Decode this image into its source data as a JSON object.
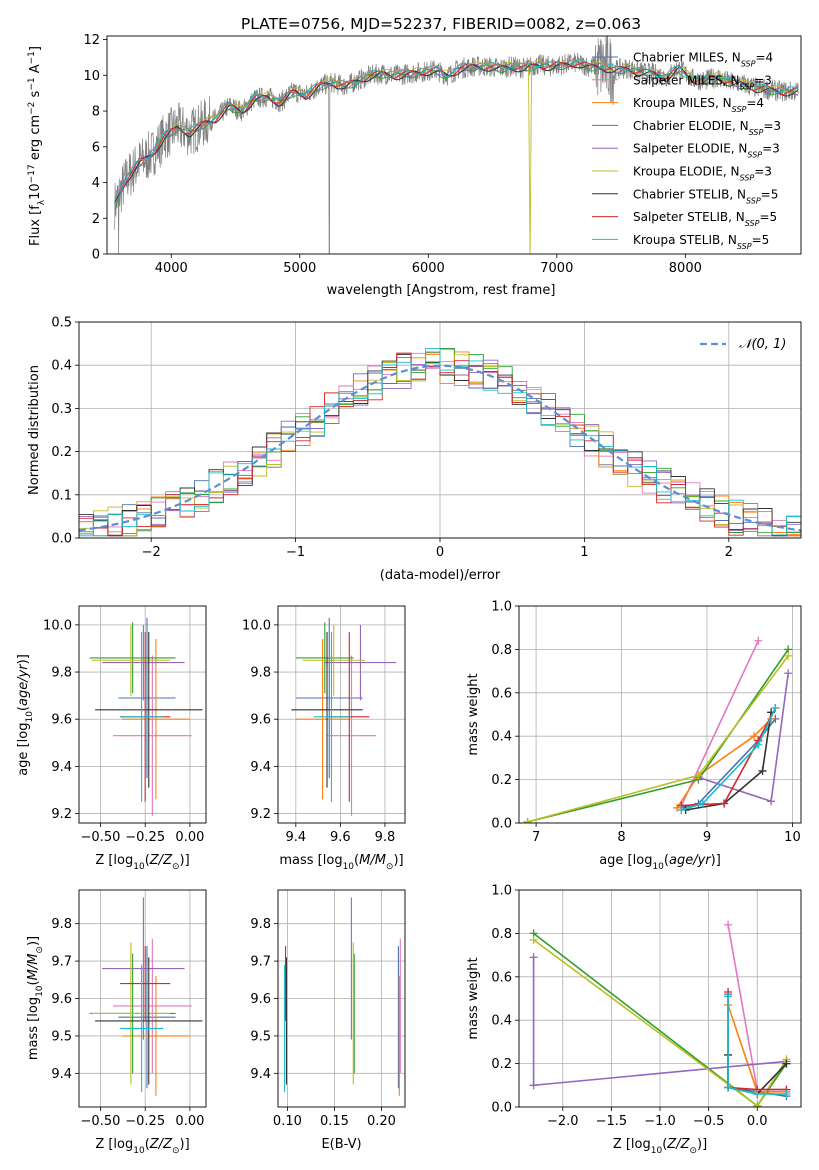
{
  "figure_title": "PLATE=0756, MJD=52237, FIBERID=0082, z=0.063",
  "colors": {
    "chabrier_miles": "#4c72b0",
    "salpeter_miles": "#e377c2",
    "kroupa_miles": "#ff7f0e",
    "chabrier_elodie": "#2ca02c",
    "salpeter_elodie": "#9467bd",
    "kroupa_elodie": "#bcbd22",
    "chabrier_stelib": "#333333",
    "salpeter_stelib": "#d62728",
    "kroupa_stelib": "#17becf",
    "data": "#808080",
    "normal": "#5b8fd6"
  },
  "legend": [
    {
      "name": "Chabrier MILES",
      "nssp": "4"
    },
    {
      "name": "Salpeter MILES",
      "nssp": "3"
    },
    {
      "name": "Kroupa MILES",
      "nssp": "4"
    },
    {
      "name": "Chabrier ELODIE",
      "nssp": "3"
    },
    {
      "name": "Salpeter ELODIE",
      "nssp": "3"
    },
    {
      "name": "Kroupa ELODIE",
      "nssp": "3"
    },
    {
      "name": "Chabrier STELIB",
      "nssp": "5"
    },
    {
      "name": "Salpeter STELIB",
      "nssp": "5"
    },
    {
      "name": "Kroupa STELIB",
      "nssp": "5"
    }
  ],
  "chart_data": [
    {
      "type": "line",
      "id": "spectrum",
      "xlabel": "wavelength [Angstrom, rest frame]",
      "ylabel": "Flux [fλ10⁻¹⁷ erg cm⁻² s⁻¹ A⁻¹]",
      "xlim": [
        3500,
        8900
      ],
      "ylim": [
        0,
        12.2
      ],
      "xticks": [
        4000,
        5000,
        6000,
        7000,
        8000
      ],
      "yticks": [
        0,
        2,
        4,
        6,
        8,
        10,
        12
      ],
      "x": [
        3550,
        3650,
        3750,
        3850,
        3950,
        4050,
        4150,
        4250,
        4350,
        4450,
        4550,
        4650,
        4750,
        4850,
        4950,
        5050,
        5150,
        5250,
        5350,
        5450,
        5550,
        5650,
        5750,
        5850,
        5950,
        6050,
        6150,
        6250,
        6350,
        6450,
        6550,
        6650,
        6750,
        6850,
        6950,
        7050,
        7150,
        7250,
        7350,
        7450,
        7550,
        7650,
        7750,
        7850,
        7950,
        8050,
        8150,
        8250,
        8350,
        8450,
        8550,
        8650,
        8750
      ],
      "y": [
        2.6,
        4.2,
        5.1,
        5.6,
        6.6,
        7.1,
        6.8,
        7.3,
        7.6,
        8.3,
        8.0,
        8.7,
        8.8,
        8.5,
        9.1,
        8.9,
        9.4,
        9.6,
        9.4,
        9.7,
        10.0,
        10.1,
        10.0,
        10.1,
        10.2,
        10.3,
        10.0,
        10.4,
        10.5,
        10.5,
        10.4,
        10.5,
        10.4,
        10.6,
        10.5,
        10.6,
        10.7,
        10.5,
        10.5,
        10.3,
        10.4,
        10.2,
        10.1,
        9.9,
        10.4,
        9.8,
        9.7,
        9.9,
        9.6,
        9.5,
        9.3,
        9.2,
        9.1
      ]
    },
    {
      "type": "line",
      "id": "residual_histogram",
      "xlabel": "(data-model)/error",
      "ylabel": "Normed distribution",
      "xlim": [
        -2.5,
        2.5
      ],
      "ylim": [
        0,
        0.5
      ],
      "xticks": [
        -2,
        -1,
        0,
        1,
        2
      ],
      "xtick_labels": [
        "−2",
        "−1",
        "0",
        "1",
        "2"
      ],
      "yticks": [
        0,
        0.1,
        0.2,
        0.3,
        0.4,
        0.5
      ],
      "ytick_labels": [
        "0.0",
        "0.1",
        "0.2",
        "0.3",
        "0.4",
        "0.5"
      ],
      "reference": {
        "name": "𝒩(0, 1)",
        "mean": 0,
        "sigma": 1
      },
      "bin_width": 0.1
    },
    {
      "type": "scatter",
      "id": "age_vs_Z",
      "xlabel": "Z [log10(Z/Z⊙)]",
      "ylabel": "age [log10(age/yr)]",
      "xlim": [
        -0.62,
        0.09
      ],
      "ylim": [
        9.16,
        10.08
      ],
      "xticks": [
        -0.5,
        -0.25,
        0.0
      ],
      "xtick_labels": [
        "−0.50",
        "−0.25",
        "0.00"
      ],
      "yticks": [
        9.2,
        9.4,
        9.6,
        9.8,
        10.0
      ],
      "ytick_labels": [
        "9.2",
        "9.4",
        "9.6",
        "9.8",
        "10.0"
      ],
      "points": [
        {
          "model": "chabrier_miles",
          "x": -0.24,
          "xerr": 0.16,
          "y": 9.69,
          "yerr": 0.34
        },
        {
          "model": "salpeter_miles",
          "x": -0.21,
          "xerr": 0.22,
          "y": 9.53,
          "yerr": 0.34
        },
        {
          "model": "kroupa_miles",
          "x": -0.19,
          "xerr": 0.19,
          "y": 9.6,
          "yerr": 0.34
        },
        {
          "model": "chabrier_elodie",
          "x": -0.32,
          "xerr": 0.24,
          "y": 9.86,
          "yerr": 0.15
        },
        {
          "model": "salpeter_elodie",
          "x": -0.26,
          "xerr": 0.23,
          "y": 9.84,
          "yerr": 0.16
        },
        {
          "model": "kroupa_elodie",
          "x": -0.33,
          "xerr": 0.22,
          "y": 9.85,
          "yerr": 0.15
        },
        {
          "model": "chabrier_stelib",
          "x": -0.23,
          "xerr": 0.3,
          "y": 9.64,
          "yerr": 0.33
        },
        {
          "model": "salpeter_stelib",
          "x": -0.25,
          "xerr": 0.14,
          "y": 9.61,
          "yerr": 0.36
        },
        {
          "model": "kroupa_stelib",
          "x": -0.27,
          "xerr": 0.12,
          "y": 9.61,
          "yerr": 0.36
        }
      ]
    },
    {
      "type": "scatter",
      "id": "age_vs_mass",
      "xlabel": "mass [log10(M/M⊙)]",
      "ylabel": "",
      "xlim": [
        9.32,
        9.89
      ],
      "ylim": [
        9.16,
        10.08
      ],
      "xticks": [
        9.4,
        9.6,
        9.8
      ],
      "xtick_labels": [
        "9.4",
        "9.6",
        "9.8"
      ],
      "yticks": [
        9.2,
        9.4,
        9.6,
        9.8,
        10.0
      ],
      "ytick_labels": [
        "9.2",
        "9.4",
        "9.6",
        "9.8",
        "10.0"
      ],
      "points": [
        {
          "model": "chabrier_miles",
          "x": 9.55,
          "xerr": 0.15,
          "y": 9.69,
          "yerr": 0.34
        },
        {
          "model": "salpeter_miles",
          "x": 9.65,
          "xerr": 0.11,
          "y": 9.53,
          "yerr": 0.34
        },
        {
          "model": "kroupa_miles",
          "x": 9.52,
          "xerr": 0.12,
          "y": 9.6,
          "yerr": 0.34
        },
        {
          "model": "chabrier_elodie",
          "x": 9.53,
          "xerr": 0.13,
          "y": 9.86,
          "yerr": 0.15
        },
        {
          "model": "salpeter_elodie",
          "x": 9.69,
          "xerr": 0.16,
          "y": 9.84,
          "yerr": 0.16
        },
        {
          "model": "kroupa_elodie",
          "x": 9.57,
          "xerr": 0.14,
          "y": 9.85,
          "yerr": 0.15
        },
        {
          "model": "chabrier_stelib",
          "x": 9.54,
          "xerr": 0.16,
          "y": 9.64,
          "yerr": 0.33
        },
        {
          "model": "salpeter_stelib",
          "x": 9.64,
          "xerr": 0.09,
          "y": 9.61,
          "yerr": 0.36
        },
        {
          "model": "kroupa_stelib",
          "x": 9.56,
          "xerr": 0.08,
          "y": 9.61,
          "yerr": 0.36
        }
      ]
    },
    {
      "type": "line",
      "id": "mass_weight_vs_age",
      "xlabel": "age [log10(age/yr)]",
      "ylabel": "mass weight",
      "xlim": [
        6.8,
        10.1
      ],
      "ylim": [
        0,
        1.0
      ],
      "xticks": [
        7,
        8,
        9,
        10
      ],
      "xtick_labels": [
        "7",
        "8",
        "9",
        "10"
      ],
      "yticks": [
        0,
        0.2,
        0.4,
        0.6,
        0.8,
        1.0
      ],
      "ytick_labels": [
        "0.0",
        "0.2",
        "0.4",
        "0.6",
        "0.8",
        "1.0"
      ],
      "series": [
        {
          "model": "chabrier_miles",
          "x": [
            8.7,
            8.9,
            9.6,
            9.8
          ],
          "y": [
            0.07,
            0.09,
            0.38,
            0.48
          ]
        },
        {
          "model": "salpeter_miles",
          "x": [
            8.7,
            9.6
          ],
          "y": [
            0.08,
            0.84
          ]
        },
        {
          "model": "kroupa_miles",
          "x": [
            8.65,
            8.9,
            9.55,
            9.75
          ],
          "y": [
            0.07,
            0.22,
            0.4,
            0.48
          ]
        },
        {
          "model": "chabrier_elodie",
          "x": [
            6.9,
            8.9,
            9.95
          ],
          "y": [
            0.005,
            0.2,
            0.8
          ]
        },
        {
          "model": "salpeter_elodie",
          "x": [
            8.9,
            9.75,
            9.95
          ],
          "y": [
            0.21,
            0.1,
            0.69
          ]
        },
        {
          "model": "kroupa_elodie",
          "x": [
            6.9,
            8.9,
            9.95
          ],
          "y": [
            0.005,
            0.22,
            0.77
          ]
        },
        {
          "model": "chabrier_stelib",
          "x": [
            8.75,
            9.2,
            9.65,
            9.75
          ],
          "y": [
            0.06,
            0.09,
            0.24,
            0.51
          ]
        },
        {
          "model": "salpeter_stelib",
          "x": [
            8.7,
            9.2,
            9.6,
            9.8
          ],
          "y": [
            0.08,
            0.09,
            0.38,
            0.53
          ]
        },
        {
          "model": "kroupa_stelib",
          "x": [
            8.7,
            8.95,
            9.6,
            9.8
          ],
          "y": [
            0.06,
            0.09,
            0.36,
            0.53
          ]
        }
      ]
    },
    {
      "type": "scatter",
      "id": "mass_vs_Z",
      "xlabel": "Z [log10(Z/Z⊙)]",
      "ylabel": "mass [log10(M/M⊙)]",
      "xlim": [
        -0.62,
        0.09
      ],
      "ylim": [
        9.31,
        9.89
      ],
      "xticks": [
        -0.5,
        -0.25,
        0.0
      ],
      "xtick_labels": [
        "−0.50",
        "−0.25",
        "0.00"
      ],
      "yticks": [
        9.4,
        9.5,
        9.6,
        9.7,
        9.8
      ],
      "ytick_labels": [
        "9.4",
        "9.5",
        "9.6",
        "9.7",
        "9.8"
      ],
      "points": [
        {
          "model": "chabrier_miles",
          "x": -0.24,
          "xerr": 0.16,
          "y": 9.55,
          "yerr": 0.19
        },
        {
          "model": "salpeter_miles",
          "x": -0.21,
          "xerr": 0.22,
          "y": 9.58,
          "yerr": 0.18
        },
        {
          "model": "kroupa_miles",
          "x": -0.19,
          "xerr": 0.19,
          "y": 9.5,
          "yerr": 0.16
        },
        {
          "model": "chabrier_elodie",
          "x": -0.32,
          "xerr": 0.24,
          "y": 9.56,
          "yerr": 0.16
        },
        {
          "model": "salpeter_elodie",
          "x": -0.26,
          "xerr": 0.23,
          "y": 9.68,
          "yerr": 0.19
        },
        {
          "model": "kroupa_elodie",
          "x": -0.33,
          "xerr": 0.22,
          "y": 9.56,
          "yerr": 0.19
        },
        {
          "model": "chabrier_stelib",
          "x": -0.23,
          "xerr": 0.3,
          "y": 9.54,
          "yerr": 0.17
        },
        {
          "model": "salpeter_stelib",
          "x": -0.25,
          "xerr": 0.14,
          "y": 9.64,
          "yerr": 0.1
        },
        {
          "model": "kroupa_stelib",
          "x": -0.27,
          "xerr": 0.12,
          "y": 9.52,
          "yerr": 0.17
        }
      ]
    },
    {
      "type": "scatter",
      "id": "mass_vs_ebv",
      "xlabel": "E(B-V)",
      "ylabel": "",
      "xlim": [
        0.09,
        0.225
      ],
      "ylim": [
        9.31,
        9.89
      ],
      "xticks": [
        0.1,
        0.15,
        0.2
      ],
      "xtick_labels": [
        "0.10",
        "0.15",
        "0.20"
      ],
      "yticks": [
        9.4,
        9.5,
        9.6,
        9.7,
        9.8
      ],
      "ytick_labels": [
        "9.4",
        "9.5",
        "9.6",
        "9.7",
        "9.8"
      ],
      "points": [
        {
          "model": "chabrier_miles",
          "x": 0.218,
          "y": 9.55,
          "yerr": 0.19
        },
        {
          "model": "salpeter_miles",
          "x": 0.22,
          "y": 9.58,
          "yerr": 0.18
        },
        {
          "model": "kroupa_miles",
          "x": 0.219,
          "y": 9.5,
          "yerr": 0.16
        },
        {
          "model": "chabrier_elodie",
          "x": 0.171,
          "y": 9.56,
          "yerr": 0.16
        },
        {
          "model": "salpeter_elodie",
          "x": 0.168,
          "y": 9.68,
          "yerr": 0.19
        },
        {
          "model": "kroupa_elodie",
          "x": 0.17,
          "y": 9.56,
          "yerr": 0.19
        },
        {
          "model": "chabrier_stelib",
          "x": 0.099,
          "y": 9.54,
          "yerr": 0.17
        },
        {
          "model": "salpeter_stelib",
          "x": 0.098,
          "y": 9.64,
          "yerr": 0.1
        },
        {
          "model": "kroupa_stelib",
          "x": 0.097,
          "y": 9.52,
          "yerr": 0.17
        }
      ]
    },
    {
      "type": "line",
      "id": "mass_weight_vs_Z",
      "xlabel": "Z [log10(Z/Z⊙)]",
      "ylabel": "mass weight",
      "xlim": [
        -2.45,
        0.45
      ],
      "ylim": [
        0,
        1.0
      ],
      "xticks": [
        -2.0,
        -1.5,
        -1.0,
        -0.5,
        0.0
      ],
      "xtick_labels": [
        "−2.0",
        "−1.5",
        "−1.0",
        "−0.5",
        "0.0"
      ],
      "yticks": [
        0,
        0.2,
        0.4,
        0.6,
        0.8,
        1.0
      ],
      "ytick_labels": [
        "0.0",
        "0.2",
        "0.4",
        "0.6",
        "0.8",
        "1.0"
      ],
      "series": [
        {
          "model": "chabrier_miles",
          "x": [
            -0.3,
            -0.3,
            0.0,
            0.3
          ],
          "y": [
            0.52,
            0.09,
            0.07,
            0.05
          ]
        },
        {
          "model": "salpeter_miles",
          "x": [
            -0.3,
            0.0,
            0.3
          ],
          "y": [
            0.84,
            0.08,
            0.08
          ]
        },
        {
          "model": "kroupa_miles",
          "x": [
            -0.3,
            0.0,
            0.3
          ],
          "y": [
            0.47,
            0.07,
            0.07
          ]
        },
        {
          "model": "chabrier_elodie",
          "x": [
            -2.3,
            0.0,
            0.3
          ],
          "y": [
            0.8,
            0.005,
            0.2
          ]
        },
        {
          "model": "salpeter_elodie",
          "x": [
            -2.3,
            -2.3,
            0.3
          ],
          "y": [
            0.69,
            0.1,
            0.21
          ]
        },
        {
          "model": "kroupa_elodie",
          "x": [
            -2.3,
            0.0,
            0.3
          ],
          "y": [
            0.77,
            0.005,
            0.22
          ]
        },
        {
          "model": "chabrier_stelib",
          "x": [
            -0.3,
            -0.3,
            0.0,
            0.3
          ],
          "y": [
            0.24,
            0.09,
            0.06,
            0.2
          ]
        },
        {
          "model": "salpeter_stelib",
          "x": [
            -0.3,
            -0.3,
            0.0,
            0.3
          ],
          "y": [
            0.53,
            0.09,
            0.08,
            0.08
          ]
        },
        {
          "model": "kroupa_stelib",
          "x": [
            -0.3,
            -0.3,
            0.0,
            0.3
          ],
          "y": [
            0.51,
            0.09,
            0.06,
            0.06
          ]
        }
      ]
    }
  ]
}
